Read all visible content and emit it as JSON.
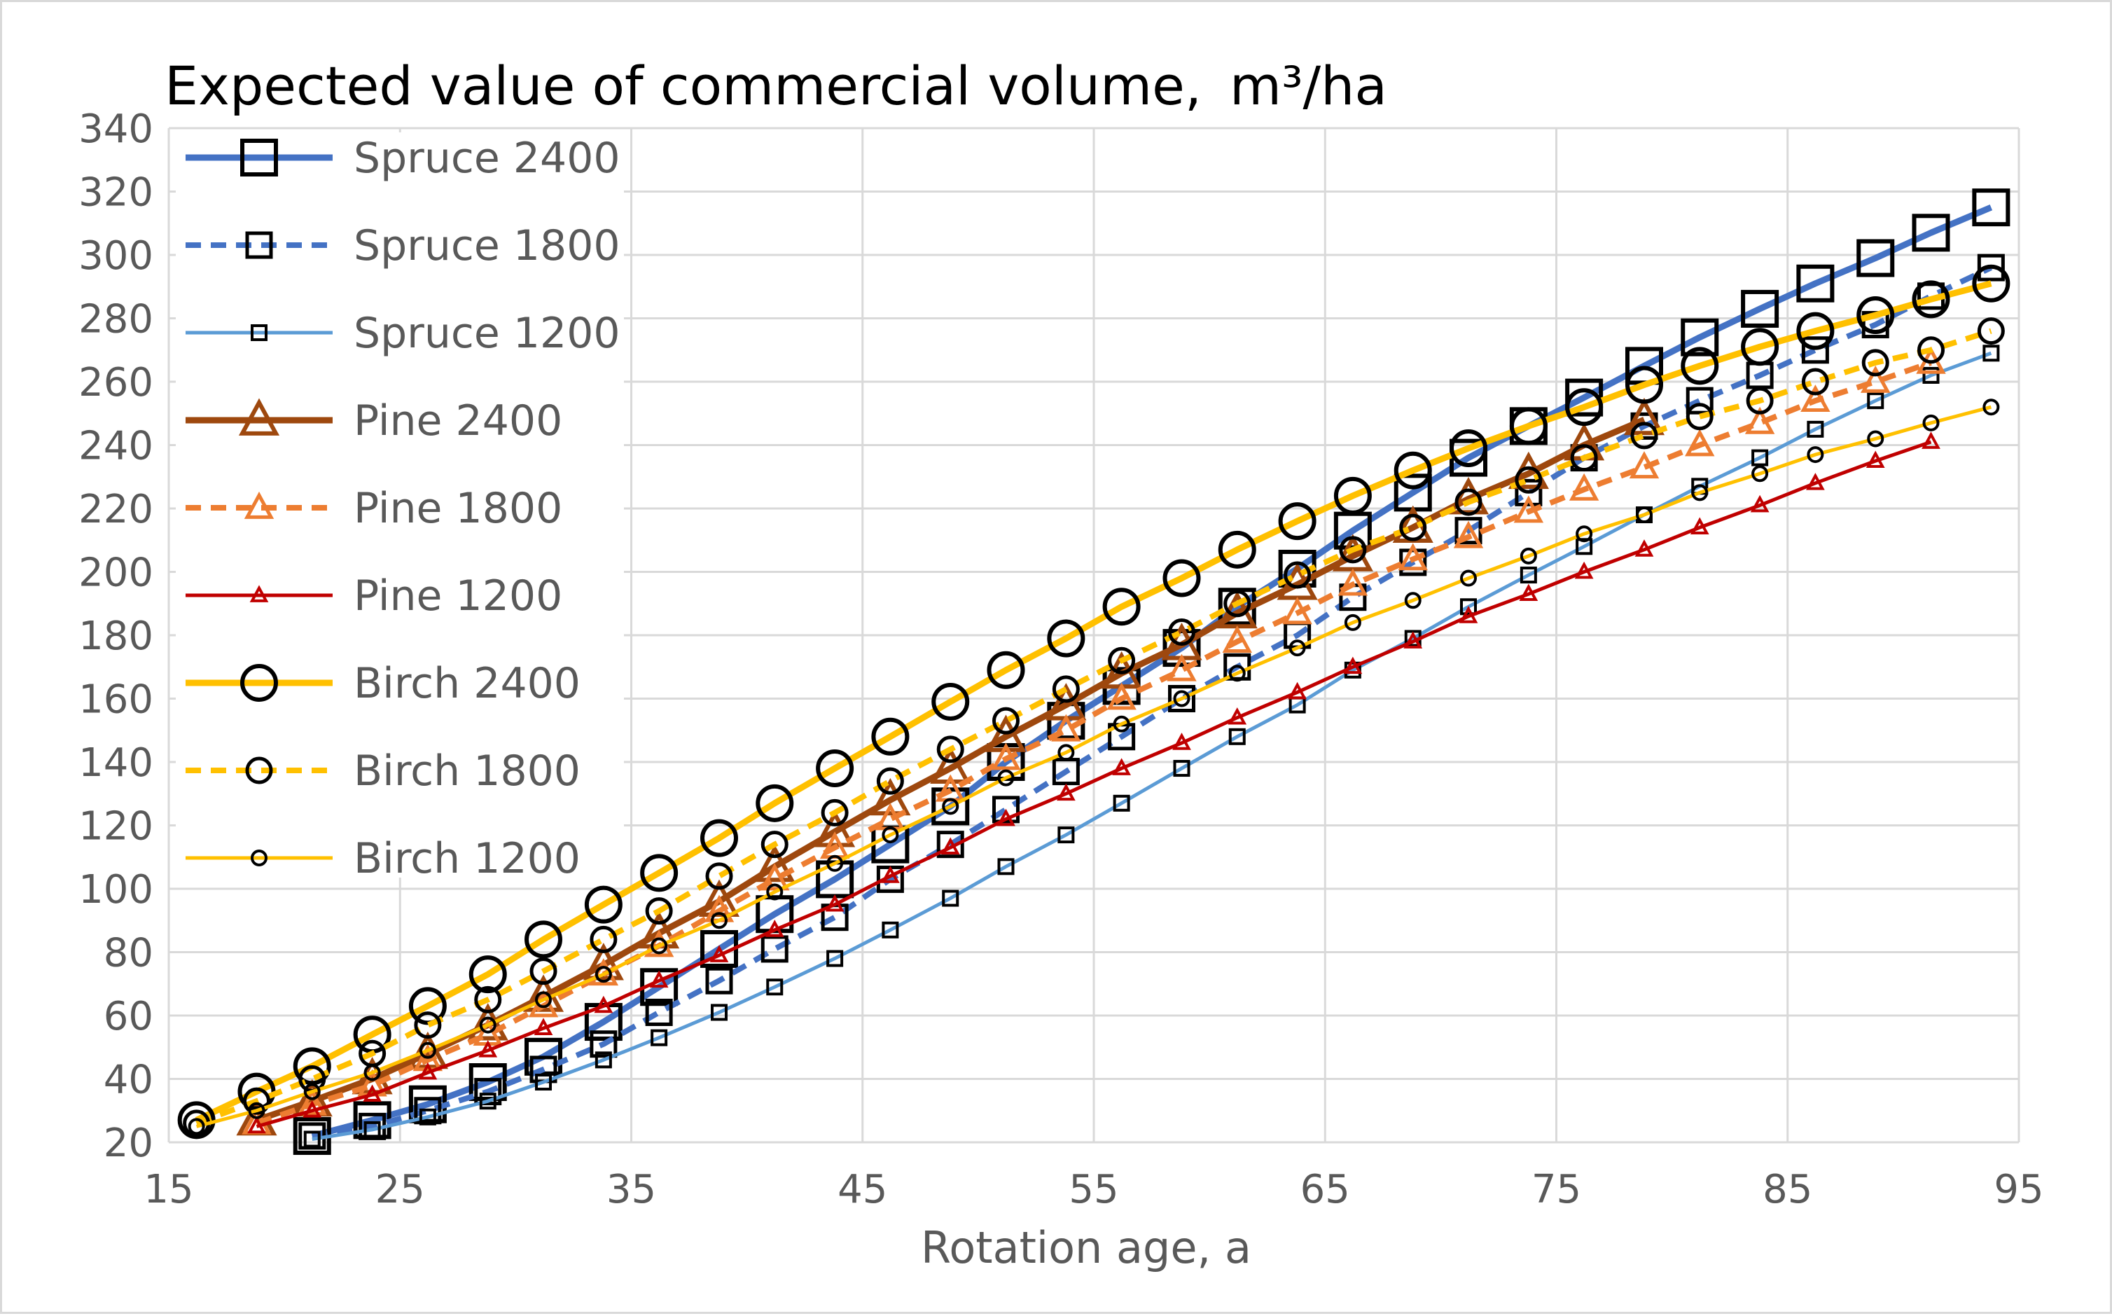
{
  "chart_data": {
    "type": "line",
    "title": "Expected value of commercial volume,",
    "title_unit": "m³/ha",
    "xlabel": "Rotation age, a",
    "ylabel": "",
    "xlim": [
      15,
      95
    ],
    "ylim": [
      20,
      340
    ],
    "xticks": [
      15,
      25,
      35,
      45,
      55,
      65,
      75,
      85,
      95
    ],
    "yticks": [
      20,
      40,
      60,
      80,
      100,
      120,
      140,
      160,
      180,
      200,
      220,
      240,
      260,
      280,
      300,
      320,
      340
    ],
    "grid": true,
    "legend_position": "top-left",
    "series": [
      {
        "name": "Spruce 2400",
        "color": "#4472C4",
        "dash": "solid",
        "marker": "square",
        "marker_size": "large",
        "x": [
          21.2,
          23.8,
          26.2,
          28.8,
          31.2,
          33.8,
          36.2,
          38.8,
          41.2,
          43.8,
          46.2,
          48.8,
          51.2,
          53.8,
          56.2,
          58.8,
          61.2,
          63.8,
          66.2,
          68.8,
          71.2,
          73.8,
          76.2,
          78.8,
          81.2,
          83.8,
          86.2,
          88.8,
          91.2,
          93.8
        ],
        "y": [
          22,
          27,
          32,
          39,
          47,
          58,
          69,
          81,
          92,
          103,
          114,
          126,
          140,
          153,
          164,
          176,
          189,
          201,
          213,
          225,
          236,
          246,
          255,
          265,
          274,
          283,
          291,
          299,
          307,
          315
        ]
      },
      {
        "name": "Spruce 1800",
        "color": "#4472C4",
        "dash": "dashed",
        "marker": "square",
        "marker_size": "medium",
        "x": [
          21.2,
          23.8,
          26.2,
          28.8,
          31.2,
          33.8,
          36.2,
          38.8,
          41.2,
          43.8,
          46.2,
          48.8,
          51.2,
          53.8,
          56.2,
          58.8,
          61.2,
          63.8,
          66.2,
          68.8,
          71.2,
          73.8,
          76.2,
          78.8,
          81.2,
          83.8,
          86.2,
          88.8,
          91.2,
          93.8
        ],
        "y": [
          22,
          25,
          30,
          36,
          43,
          51,
          61,
          71,
          81,
          91,
          103,
          114,
          125,
          137,
          148,
          160,
          170,
          180,
          192,
          203,
          213,
          225,
          236,
          246,
          254,
          262,
          270,
          278,
          287,
          296
        ]
      },
      {
        "name": "Spruce 1200",
        "color": "#5B9BD5",
        "dash": "solid",
        "marker": "square",
        "marker_size": "small",
        "x": [
          21.2,
          23.8,
          26.2,
          28.8,
          31.2,
          33.8,
          36.2,
          38.8,
          41.2,
          43.8,
          46.2,
          48.8,
          51.2,
          53.8,
          56.2,
          58.8,
          61.2,
          63.8,
          66.2,
          68.8,
          71.2,
          73.8,
          76.2,
          78.8,
          81.2,
          83.8,
          86.2,
          88.8,
          91.2,
          93.8
        ],
        "y": [
          21,
          24,
          28,
          33,
          39,
          46,
          53,
          61,
          69,
          78,
          87,
          97,
          107,
          117,
          127,
          138,
          148,
          158,
          169,
          179,
          189,
          199,
          208,
          218,
          227,
          236,
          245,
          254,
          262,
          269
        ]
      },
      {
        "name": "Pine 2400",
        "color": "#9E480E",
        "dash": "solid",
        "marker": "triangle",
        "marker_size": "large",
        "x": [
          18.8,
          21.2,
          23.8,
          26.2,
          28.8,
          31.2,
          33.8,
          36.2,
          38.8,
          41.2,
          43.8,
          46.2,
          48.8,
          51.2,
          53.8,
          56.2,
          58.8,
          61.2,
          63.8,
          66.2,
          68.8,
          71.2,
          73.8,
          76.2,
          78.8
        ],
        "y": [
          27,
          33,
          40,
          48,
          57,
          66,
          76,
          86,
          96,
          107,
          118,
          128,
          138,
          148,
          158,
          168,
          177,
          187,
          196,
          205,
          214,
          223,
          231,
          240,
          248
        ]
      },
      {
        "name": "Pine 1800",
        "color": "#ED7D31",
        "dash": "dashed",
        "marker": "triangle",
        "marker_size": "medium",
        "x": [
          18.8,
          21.2,
          23.8,
          26.2,
          28.8,
          31.2,
          33.8,
          36.2,
          38.8,
          41.2,
          43.8,
          46.2,
          48.8,
          51.2,
          53.8,
          56.2,
          58.8,
          61.2,
          63.8,
          66.2,
          68.8,
          71.2,
          73.8,
          76.2,
          78.8,
          81.2,
          83.8,
          86.2,
          88.8,
          91.2
        ],
        "y": [
          26,
          32,
          38,
          46,
          54,
          63,
          73,
          82,
          93,
          103,
          113,
          122,
          131,
          141,
          150,
          160,
          169,
          178,
          187,
          196,
          204,
          211,
          219,
          226,
          233,
          240,
          247,
          254,
          260,
          266
        ]
      },
      {
        "name": "Pine 1200",
        "color": "#C00000",
        "dash": "solid",
        "marker": "triangle",
        "marker_size": "small",
        "x": [
          18.8,
          21.2,
          23.8,
          26.2,
          28.8,
          31.2,
          33.8,
          36.2,
          38.8,
          41.2,
          43.8,
          46.2,
          48.8,
          51.2,
          53.8,
          56.2,
          58.8,
          61.2,
          63.8,
          66.2,
          68.8,
          71.2,
          73.8,
          76.2,
          78.8,
          81.2,
          83.8,
          86.2,
          88.8,
          91.2
        ],
        "y": [
          25,
          30,
          35,
          42,
          49,
          56,
          63,
          71,
          79,
          87,
          95,
          104,
          113,
          122,
          130,
          138,
          146,
          154,
          162,
          170,
          178,
          186,
          193,
          200,
          207,
          214,
          221,
          228,
          235,
          241
        ]
      },
      {
        "name": "Birch 2400",
        "color": "#FFC000",
        "dash": "solid",
        "marker": "circle",
        "marker_size": "large",
        "x": [
          16.2,
          18.8,
          21.2,
          23.8,
          26.2,
          28.8,
          31.2,
          33.8,
          36.2,
          38.8,
          41.2,
          43.8,
          46.2,
          48.8,
          51.2,
          53.8,
          56.2,
          58.8,
          61.2,
          63.8,
          66.2,
          68.8,
          71.2,
          73.8,
          76.2,
          78.8,
          81.2,
          83.8,
          86.2,
          88.8,
          91.2,
          93.8
        ],
        "y": [
          27,
          36,
          44,
          54,
          63,
          73,
          84,
          95,
          105,
          116,
          127,
          138,
          148,
          159,
          169,
          179,
          189,
          198,
          207,
          216,
          224,
          232,
          239,
          246,
          252,
          259,
          265,
          271,
          276,
          281,
          286,
          291
        ]
      },
      {
        "name": "Birch 1800",
        "color": "#FFC000",
        "dash": "dashed",
        "marker": "circle",
        "marker_size": "medium",
        "x": [
          16.2,
          18.8,
          21.2,
          23.8,
          26.2,
          28.8,
          31.2,
          33.8,
          36.2,
          38.8,
          41.2,
          43.8,
          46.2,
          48.8,
          51.2,
          53.8,
          56.2,
          58.8,
          61.2,
          63.8,
          66.2,
          68.8,
          71.2,
          73.8,
          76.2,
          78.8,
          81.2,
          83.8,
          86.2,
          88.8,
          91.2,
          93.8
        ],
        "y": [
          26,
          33,
          40,
          48,
          57,
          65,
          74,
          84,
          93,
          104,
          114,
          124,
          134,
          144,
          153,
          163,
          172,
          181,
          190,
          199,
          207,
          214,
          222,
          229,
          236,
          243,
          249,
          254,
          260,
          266,
          270,
          276
        ]
      },
      {
        "name": "Birch 1200",
        "color": "#FFC000",
        "dash": "solid",
        "marker": "circle",
        "marker_size": "small",
        "x": [
          16.2,
          18.8,
          21.2,
          23.8,
          26.2,
          28.8,
          31.2,
          33.8,
          36.2,
          38.8,
          41.2,
          43.8,
          46.2,
          48.8,
          51.2,
          53.8,
          56.2,
          58.8,
          61.2,
          63.8,
          66.2,
          68.8,
          71.2,
          73.8,
          76.2,
          78.8,
          81.2,
          83.8,
          86.2,
          88.8,
          91.2,
          93.8
        ],
        "y": [
          25,
          30,
          36,
          42,
          49,
          57,
          65,
          73,
          82,
          90,
          99,
          108,
          117,
          126,
          135,
          143,
          152,
          160,
          168,
          176,
          184,
          191,
          198,
          205,
          212,
          218,
          225,
          231,
          237,
          242,
          247,
          252
        ]
      }
    ]
  }
}
